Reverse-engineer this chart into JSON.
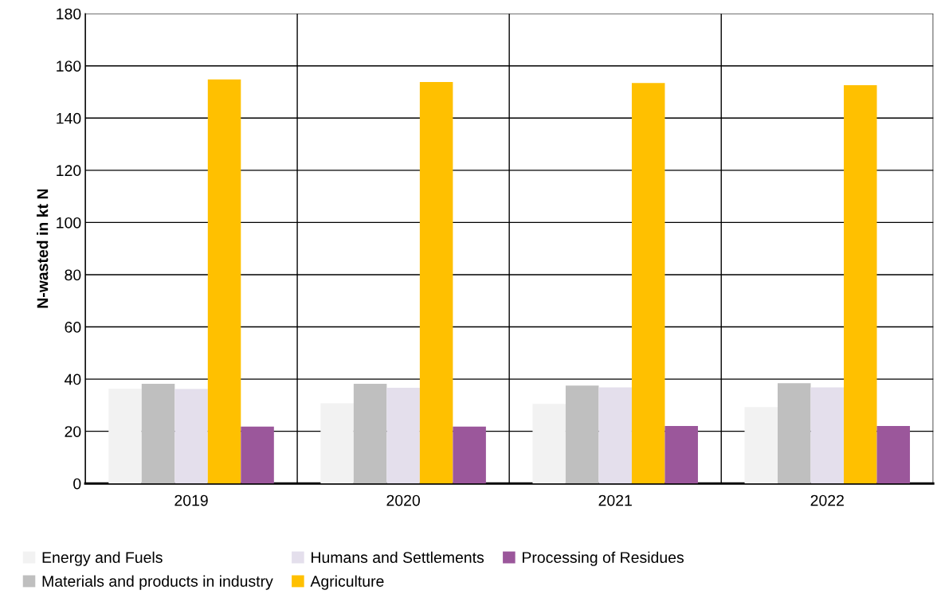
{
  "chart_data": {
    "type": "bar",
    "ylabel": "N-wasted in kt N",
    "categories": [
      "2019",
      "2020",
      "2021",
      "2022"
    ],
    "series": [
      {
        "name": "Energy and Fuels",
        "color": "#f2f2f2",
        "values": [
          36.3,
          30.7,
          30.5,
          29.3
        ]
      },
      {
        "name": "Materials and products in industry",
        "color": "#bfbfbf",
        "values": [
          38.2,
          38.2,
          37.5,
          38.4
        ]
      },
      {
        "name": "Humans and Settlements",
        "color": "#e4dfec",
        "values": [
          36.2,
          36.7,
          36.8,
          36.8
        ]
      },
      {
        "name": "Agriculture",
        "color": "#ffc000",
        "values": [
          154.8,
          153.8,
          153.4,
          152.6
        ]
      },
      {
        "name": "Processing of Residues",
        "color": "#9b579b",
        "values": [
          21.8,
          21.8,
          22.0,
          22.0
        ]
      }
    ],
    "ylim": [
      0,
      180
    ],
    "yticks": [
      0,
      20,
      40,
      60,
      80,
      100,
      120,
      140,
      160,
      180
    ],
    "grid": true,
    "legend": "bottom"
  }
}
